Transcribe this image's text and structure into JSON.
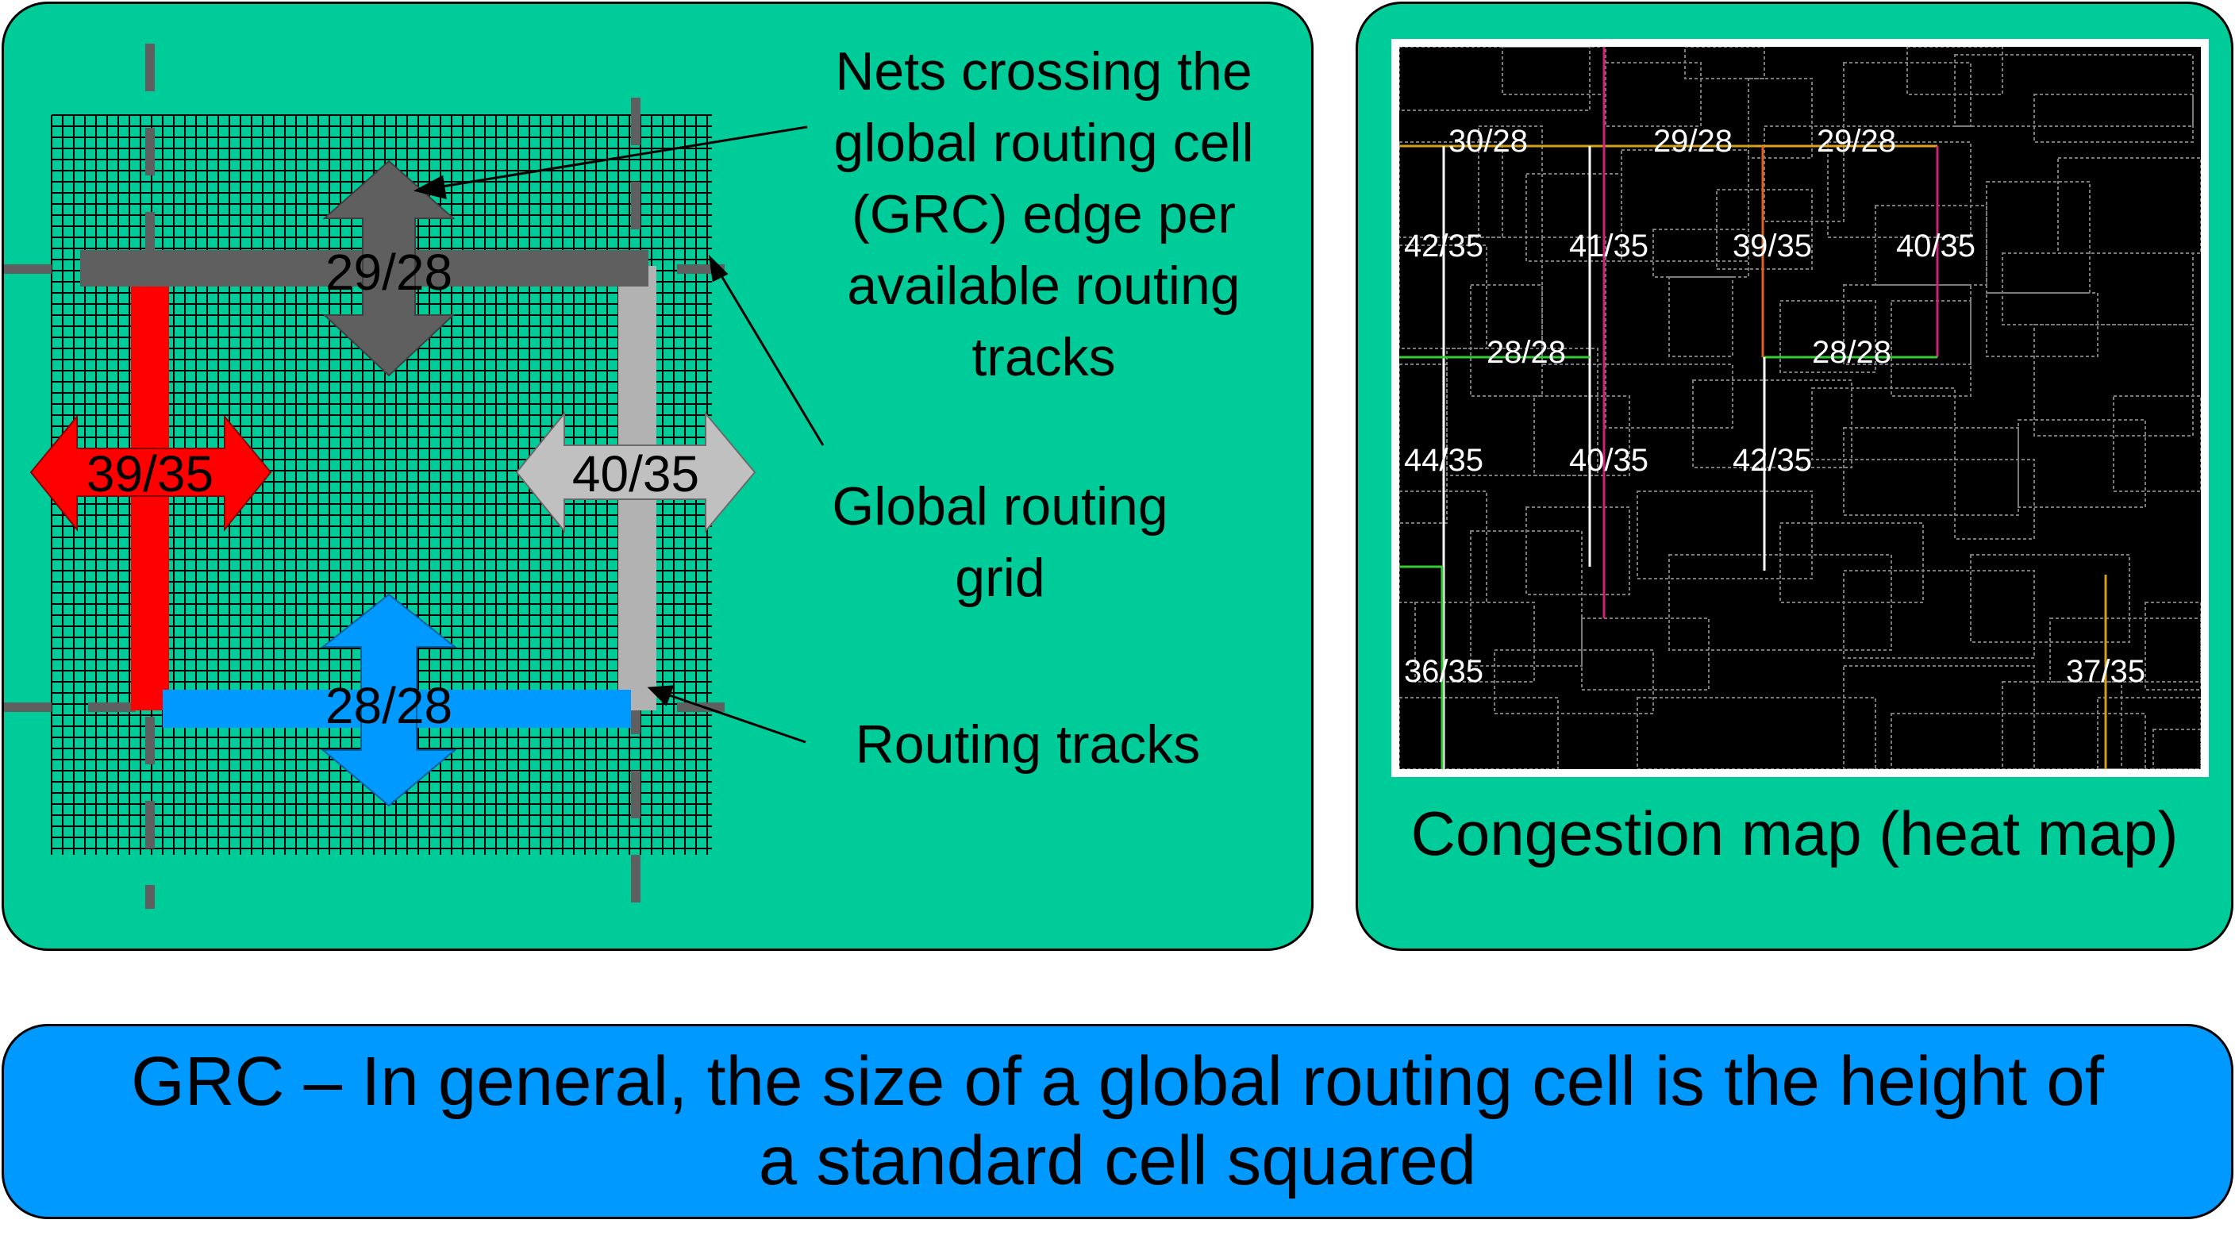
{
  "grc_diagram": {
    "edge_values": {
      "top": "29/28",
      "left": "39/35",
      "right": "40/35",
      "bottom": "28/28"
    },
    "colors": {
      "panel": "#00CC99",
      "top_edge": "#5F5F5F",
      "left_edge": "#FF0000",
      "right_edge": "#B2B2B2",
      "bottom_edge": "#0099FF",
      "grid": "#000000"
    }
  },
  "annotations": {
    "nets_crossing": [
      "Nets crossing the",
      "global routing cell",
      "(GRC) edge per",
      "available routing",
      "tracks"
    ],
    "global_routing_grid": [
      "Global routing",
      "grid"
    ],
    "routing_tracks": "Routing tracks"
  },
  "congestion_map": {
    "caption": "Congestion map (heat map)",
    "cell_labels": [
      "30/28",
      "29/28",
      "29/28",
      "42/35",
      "41/35",
      "39/35",
      "40/35",
      "28/28",
      "28/28",
      "44/35",
      "40/35",
      "42/35",
      "36/35",
      "37/35"
    ]
  },
  "footer": {
    "line1": "GRC – In general, the size of a global routing cell is the height of",
    "line2": "a standard cell squared"
  }
}
